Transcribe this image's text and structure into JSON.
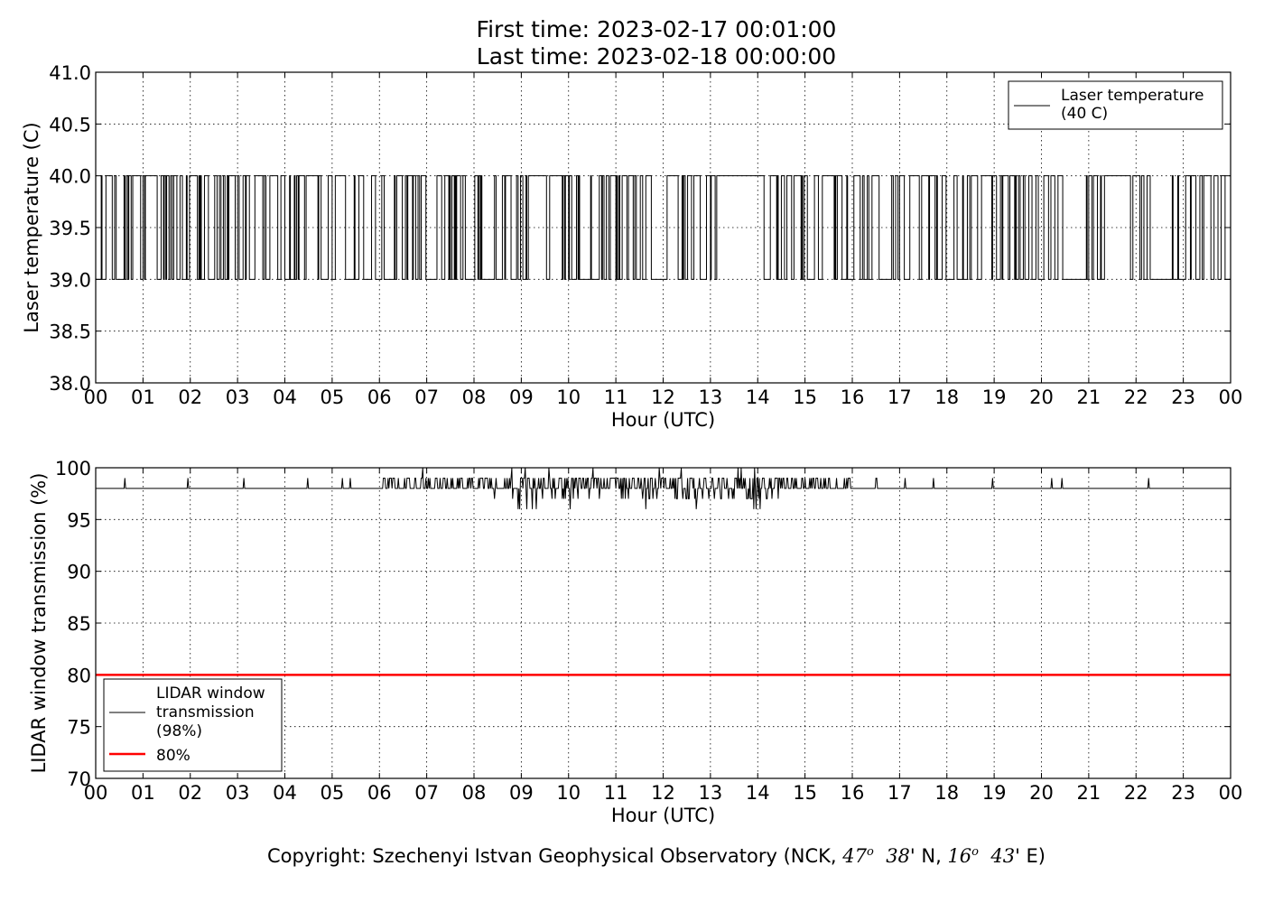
{
  "title_line1": "First time: 2023-02-17 00:01:00",
  "title_line2": "Last time: 2023-02-18 00:00:00",
  "footer": {
    "prefix": "Copyright: Szechenyi Istvan Geophysical Observatory (NCK, ",
    "lat_deg": "47",
    "deg_sup": "o",
    "lat_min": "38",
    "lat_suffix": "' N, ",
    "lon_deg": "16",
    "lon_min": "43",
    "lon_suffix": "' E)"
  },
  "chart_data": [
    {
      "type": "line",
      "xlabel": "Hour (UTC)",
      "ylabel": "Laser temperature (C)",
      "xlim": [
        0,
        24
      ],
      "ylim": [
        38.0,
        41.0
      ],
      "x_ticks": [
        "00",
        "01",
        "02",
        "03",
        "04",
        "05",
        "06",
        "07",
        "08",
        "09",
        "10",
        "11",
        "12",
        "13",
        "14",
        "15",
        "16",
        "17",
        "18",
        "19",
        "20",
        "21",
        "22",
        "23",
        "00"
      ],
      "y_ticks": [
        "38.0",
        "38.5",
        "39.0",
        "39.5",
        "40.0",
        "40.5",
        "41.0"
      ],
      "grid": true,
      "legend_position": "top-right",
      "series": [
        {
          "name": "Laser temperature\n(40 C)",
          "color": "#000000",
          "values_description": "step signal toggling between 39.0 and 40.0",
          "levels": [
            39.0,
            40.0
          ],
          "hold_40_intervals": [
            [
              13.2,
              13.95
            ],
            [
              21.4,
              21.7
            ]
          ],
          "hold_39_intervals": [
            [
              20.45,
              20.95
            ],
            [
              22.35,
              22.75
            ]
          ]
        }
      ]
    },
    {
      "type": "line",
      "xlabel": "Hour (UTC)",
      "ylabel": "LIDAR window transmission (%)",
      "xlim": [
        0,
        24
      ],
      "ylim": [
        70,
        100
      ],
      "x_ticks": [
        "00",
        "01",
        "02",
        "03",
        "04",
        "05",
        "06",
        "07",
        "08",
        "09",
        "10",
        "11",
        "12",
        "13",
        "14",
        "15",
        "16",
        "17",
        "18",
        "19",
        "20",
        "21",
        "22",
        "23",
        "00"
      ],
      "y_ticks": [
        "70",
        "75",
        "80",
        "85",
        "90",
        "95",
        "100"
      ],
      "grid": true,
      "legend_position": "bottom-left",
      "series": [
        {
          "name": "LIDAR window\ntransmission\n(98%)",
          "color": "#000000",
          "baseline": 98,
          "noisy_interval": [
            6.0,
            16.0
          ],
          "range": [
            96,
            100
          ]
        },
        {
          "name": "80%",
          "color": "#ff0000",
          "constant": 80
        }
      ]
    }
  ]
}
